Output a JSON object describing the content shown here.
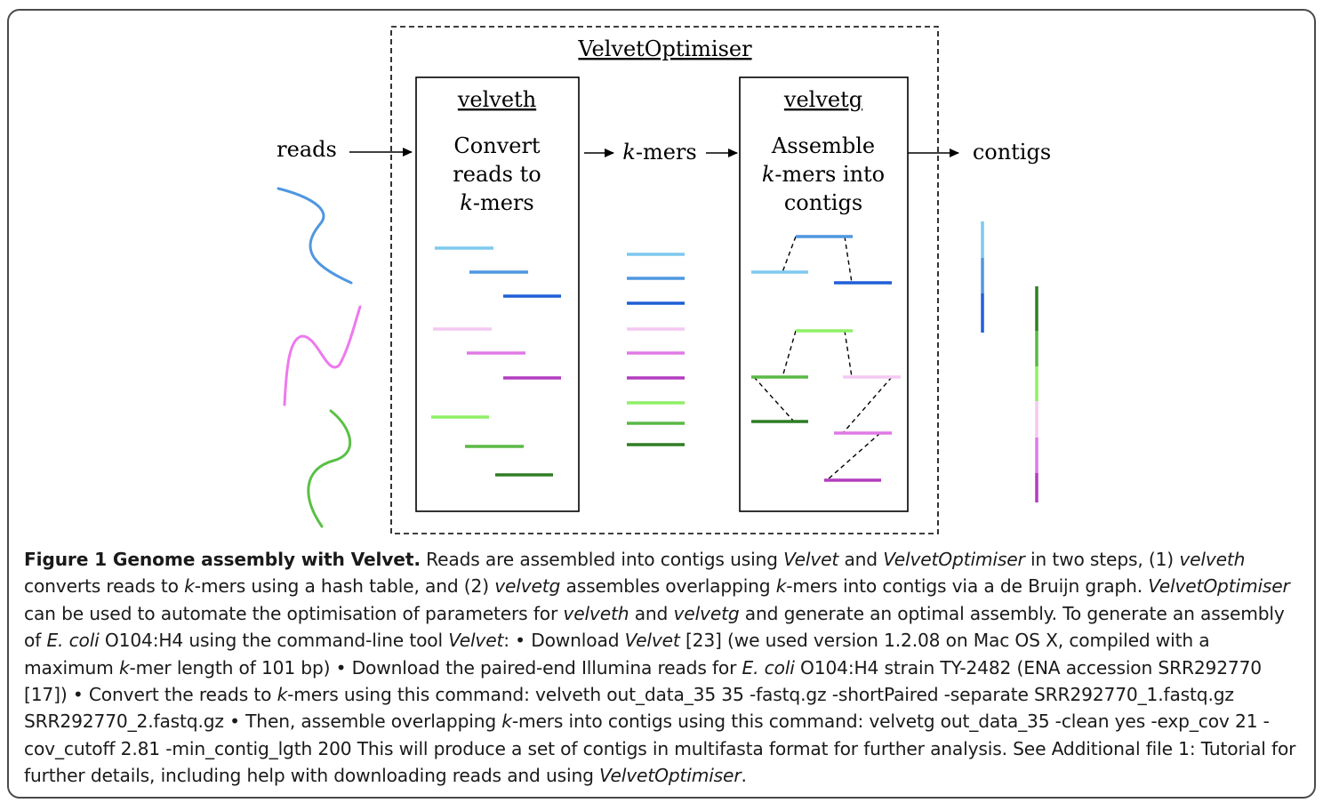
{
  "diagram": {
    "optimiser_title": "VelvetOptimiser",
    "velveth": {
      "title": "velveth",
      "desc_line1": "Convert",
      "desc_line2": "reads to",
      "desc_line3_italic": "k",
      "desc_line3_rest": "-mers"
    },
    "velvetg": {
      "title": "velvetg",
      "desc_line1": "Assemble",
      "desc_line2_italic": "k",
      "desc_line2_rest": "-mers into",
      "desc_line3": "contigs"
    },
    "reads_label": "reads",
    "kmers_italic": "k",
    "kmers_rest": "-mers",
    "contigs_label": "contigs"
  },
  "colors": {
    "blue_light": "#7fc8ee",
    "blue_mid": "#4f97e0",
    "blue_dark": "#1f5fd6",
    "pink_light": "#f5c8f2",
    "pink_mid": "#e079e6",
    "pink_dark": "#b23cbf",
    "green_light": "#8ef066",
    "green_mid": "#5ab846",
    "green_dark": "#2f7d24",
    "read_blue": "#4f97e0",
    "read_pink": "#ee78ee",
    "read_green": "#5ac046"
  },
  "caption": {
    "figure_label": "Figure 1 Genome assembly with Velvet.",
    "t01": " Reads are assembled into contigs using ",
    "i01": "Velvet",
    "t02": " and ",
    "i02": "VelvetOptimiser",
    "t03": " in two steps, (1) ",
    "i03": "velveth",
    "t04": " converts reads to ",
    "i04": "k",
    "t05": "-mers using a hash table, and (2) ",
    "i05": "velvetg",
    "t06": " assembles overlapping ",
    "i06": "k",
    "t07": "-mers into contigs via a de Bruijn graph. ",
    "i07": "VelvetOptimiser",
    "t08": " can be used to automate the optimisation of parameters for ",
    "i08": "velveth",
    "t09": " and ",
    "i09": "velvetg",
    "t10": " and generate an optimal assembly. To generate an assembly of ",
    "i10": "E. coli",
    "t11": " O104:H4 using the command-line tool ",
    "i11": "Velvet",
    "t12": ": • Download ",
    "i12": "Velvet",
    "t13": " [23] (we used version 1.2.08 on Mac OS X, compiled with a maximum ",
    "i13": "k",
    "t14": "-mer length of 101 bp) • Download the paired-end Illumina reads for ",
    "i14": "E. coli",
    "t15": " O104:H4 strain TY-2482 (ENA accession SRR292770 [17]) • Convert the reads to ",
    "i15": "k",
    "t16": "-mers using this command: velveth out_data_35 35 -fastq.gz -shortPaired -separate SRR292770_1.fastq.gz SRR292770_2.fastq.gz • Then, assemble overlapping ",
    "i16": "k",
    "t17": "-mers into contigs using this command: velvetg out_data_35 -clean yes -exp_cov 21 -cov_cutoff 2.81 -min_contig_lgth 200 This will produce a set of contigs in multifasta format for further analysis. See Additional file 1: Tutorial for further details, including help with downloading reads and using ",
    "i17": "VelvetOptimiser",
    "t18": "."
  }
}
